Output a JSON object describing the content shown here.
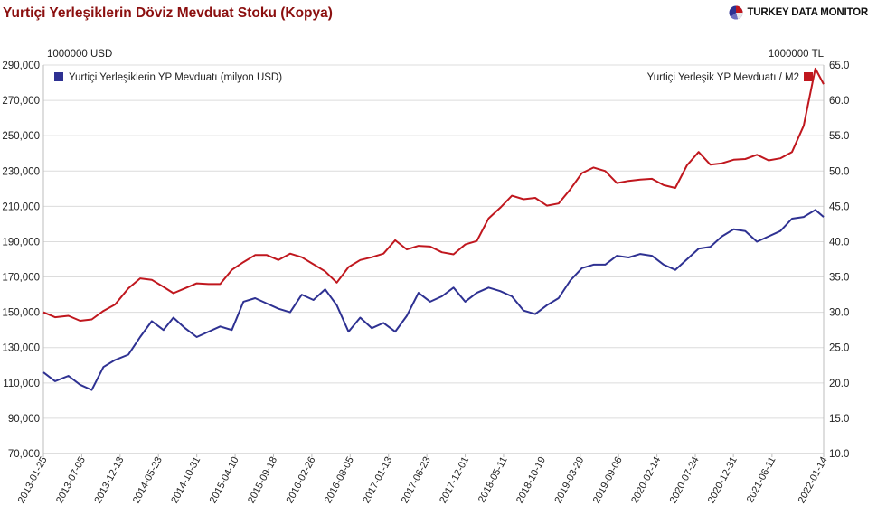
{
  "header": {
    "title": "Yurtiçi Yerleşiklerin Döviz Mevduat Stoku (Kopya)",
    "brand": "TURKEY DATA MONITOR"
  },
  "chart_data": {
    "type": "line",
    "title": "Yurtiçi Yerleşiklerin Döviz Mevduat Stoku (Kopya)",
    "left_axis": {
      "unit": "1000000 USD",
      "ylim": [
        70000,
        290000
      ],
      "ticks": [
        "70,000",
        "90,000",
        "110,000",
        "130,000",
        "150,000",
        "170,000",
        "190,000",
        "210,000",
        "230,000",
        "250,000",
        "270,000",
        "290,000"
      ]
    },
    "right_axis": {
      "unit": "1000000 TL",
      "ylim": [
        10.0,
        65.0
      ],
      "ticks": [
        "10.0",
        "15.0",
        "20.0",
        "25.0",
        "30.0",
        "35.0",
        "40.0",
        "45.0",
        "50.0",
        "55.0",
        "60.0",
        "65.0"
      ]
    },
    "x_ticks": [
      "2013-01-25",
      "2013-07-05",
      "2013-12-13",
      "2014-05-23",
      "2014-10-31",
      "2015-04-10",
      "2015-09-18",
      "2016-02-26",
      "2016-08-05",
      "2017-01-13",
      "2017-06-23",
      "2017-12-01",
      "2018-05-11",
      "2018-10-19",
      "2019-03-29",
      "2019-09-06",
      "2020-02-14",
      "2020-07-24",
      "2020-12-31",
      "2021-06-11",
      "2022-01-14"
    ],
    "grid": "horizontal",
    "legend": [
      "top-left",
      "top-right"
    ],
    "series": [
      {
        "name": "Yurtiçi Yerleşiklerin YP Mevduatı (milyon USD)",
        "axis": "left",
        "color": "#2e3192",
        "x": [
          "2013-01-25",
          "2013-03-15",
          "2013-05-10",
          "2013-06-28",
          "2013-08-16",
          "2013-10-04",
          "2013-11-22",
          "2014-01-17",
          "2014-03-07",
          "2014-04-25",
          "2014-06-13",
          "2014-07-25",
          "2014-09-12",
          "2014-10-31",
          "2014-12-19",
          "2015-02-06",
          "2015-03-27",
          "2015-05-15",
          "2015-07-03",
          "2015-08-21",
          "2015-10-09",
          "2015-11-27",
          "2016-01-15",
          "2016-03-04",
          "2016-04-22",
          "2016-06-10",
          "2016-07-29",
          "2016-09-16",
          "2016-11-04",
          "2016-12-23",
          "2017-02-10",
          "2017-03-31",
          "2017-05-19",
          "2017-07-07",
          "2017-08-25",
          "2017-10-13",
          "2017-12-01",
          "2018-01-19",
          "2018-03-09",
          "2018-04-27",
          "2018-06-15",
          "2018-08-03",
          "2018-09-21",
          "2018-11-09",
          "2018-12-28",
          "2019-02-15",
          "2019-04-05",
          "2019-05-24",
          "2019-07-12",
          "2019-08-30",
          "2019-10-18",
          "2019-12-06",
          "2020-01-24",
          "2020-03-13",
          "2020-05-01",
          "2020-06-19",
          "2020-08-07",
          "2020-09-25",
          "2020-11-13",
          "2021-01-01",
          "2021-02-19",
          "2021-04-09",
          "2021-05-28",
          "2021-07-16",
          "2021-09-03",
          "2021-10-22",
          "2021-12-10",
          "2022-01-14"
        ],
        "values": [
          116000,
          111000,
          114000,
          109000,
          106000,
          119000,
          123000,
          126000,
          136000,
          145000,
          140000,
          147000,
          141000,
          136000,
          139000,
          142000,
          140000,
          156000,
          158000,
          155000,
          152000,
          150000,
          160000,
          157000,
          163000,
          154000,
          139000,
          147000,
          141000,
          144000,
          139000,
          148000,
          161000,
          156000,
          159000,
          164000,
          156000,
          161000,
          164000,
          162000,
          159000,
          151000,
          149000,
          154000,
          158000,
          168000,
          175000,
          177000,
          177000,
          182000,
          181000,
          183000,
          182000,
          177000,
          174000,
          180000,
          186000,
          187000,
          193000,
          197000,
          196000,
          190000,
          193000,
          196000,
          203000,
          204000,
          208000,
          204000
        ]
      },
      {
        "name": "Yurtiçi Yerleşik YP Mevduatı / M2",
        "axis": "right",
        "color": "#c0171e",
        "x": [
          "2013-01-25",
          "2013-03-15",
          "2013-05-10",
          "2013-06-28",
          "2013-08-16",
          "2013-10-04",
          "2013-11-22",
          "2014-01-17",
          "2014-03-07",
          "2014-04-25",
          "2014-06-13",
          "2014-07-25",
          "2014-09-12",
          "2014-10-31",
          "2014-12-19",
          "2015-02-06",
          "2015-03-27",
          "2015-05-15",
          "2015-07-03",
          "2015-08-21",
          "2015-10-09",
          "2015-11-27",
          "2016-01-15",
          "2016-03-04",
          "2016-04-22",
          "2016-06-10",
          "2016-07-29",
          "2016-09-16",
          "2016-11-04",
          "2016-12-23",
          "2017-02-10",
          "2017-03-31",
          "2017-05-19",
          "2017-07-07",
          "2017-08-25",
          "2017-10-13",
          "2017-12-01",
          "2018-01-19",
          "2018-03-09",
          "2018-04-27",
          "2018-06-15",
          "2018-08-03",
          "2018-09-21",
          "2018-11-09",
          "2018-12-28",
          "2019-02-15",
          "2019-04-05",
          "2019-05-24",
          "2019-07-12",
          "2019-08-30",
          "2019-10-18",
          "2019-12-06",
          "2020-01-24",
          "2020-03-13",
          "2020-05-01",
          "2020-06-19",
          "2020-08-07",
          "2020-09-25",
          "2020-11-13",
          "2021-01-01",
          "2021-02-19",
          "2021-04-09",
          "2021-05-28",
          "2021-07-16",
          "2021-09-03",
          "2021-10-22",
          "2021-12-10",
          "2022-01-14"
        ],
        "values": [
          30.0,
          29.3,
          29.5,
          28.8,
          29.0,
          30.2,
          31.1,
          33.4,
          34.8,
          34.6,
          33.6,
          32.7,
          33.4,
          34.1,
          34.0,
          34.0,
          36.0,
          37.1,
          38.1,
          38.1,
          37.4,
          38.3,
          37.8,
          36.8,
          35.8,
          34.2,
          36.4,
          37.4,
          37.8,
          38.3,
          40.2,
          38.9,
          39.4,
          39.3,
          38.5,
          38.2,
          39.6,
          40.1,
          43.3,
          44.8,
          46.5,
          46.0,
          46.2,
          45.1,
          45.4,
          47.4,
          49.7,
          50.5,
          50.0,
          48.3,
          48.6,
          48.8,
          48.9,
          48.0,
          47.6,
          50.8,
          52.7,
          50.9,
          51.1,
          51.6,
          51.7,
          52.3,
          51.5,
          51.8,
          52.7,
          56.4,
          64.5,
          62.3
        ]
      }
    ]
  }
}
